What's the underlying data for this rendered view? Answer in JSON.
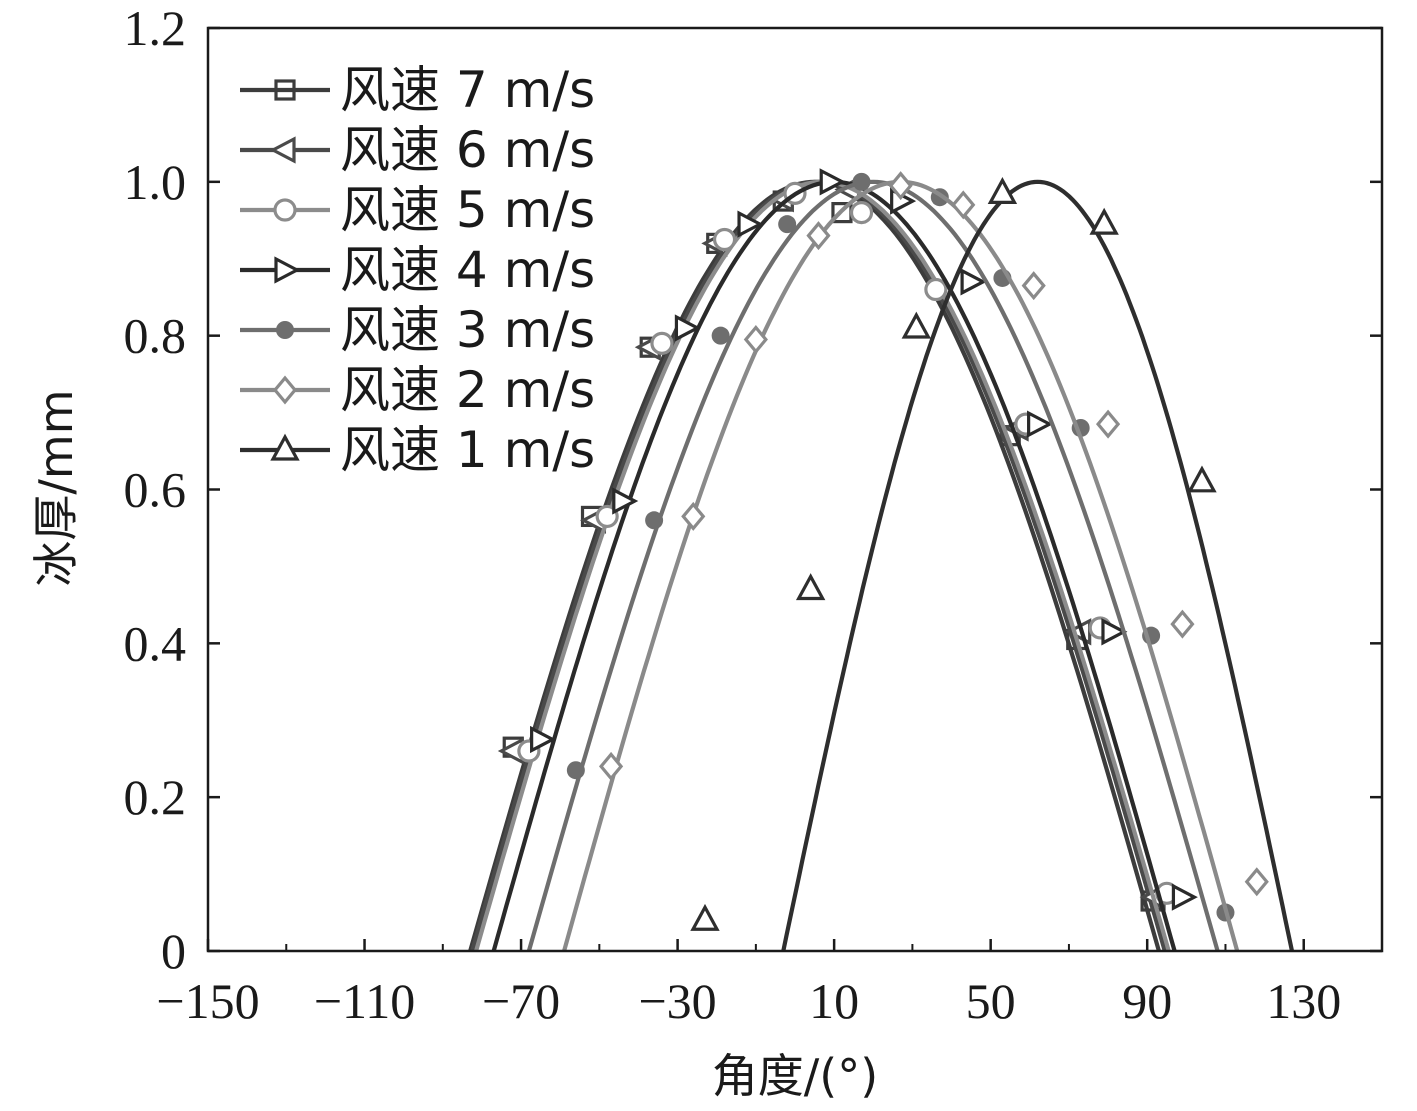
{
  "chart_data": {
    "type": "line",
    "xlabel": "角度/(°)",
    "ylabel": "冰厚/mm",
    "xlim": [
      -150,
      150
    ],
    "ylim": [
      0,
      1.2
    ],
    "xticks": [
      -150,
      -110,
      -70,
      -30,
      10,
      50,
      90,
      130
    ],
    "xtick_labels": [
      "−150",
      "−110",
      "−70",
      "−30",
      "10",
      "50",
      "90",
      "130"
    ],
    "yticks": [
      0,
      0.2,
      0.4,
      0.6,
      0.8,
      1.0,
      1.2
    ],
    "ytick_labels": [
      "0",
      "0.2",
      "0.4",
      "0.6",
      "0.8",
      "1.0",
      "1.2"
    ],
    "grid": false,
    "legend_position": "top-left",
    "series": [
      {
        "name": "风速 7 m/s",
        "marker": "square",
        "color": "#3c3c3c",
        "center": 5,
        "halfwidth": 88,
        "x": [
          -82,
          -72,
          -52,
          -37,
          -20,
          -3,
          12,
          55,
          72,
          91,
          93
        ],
        "y": [
          0,
          0.265,
          0.565,
          0.785,
          0.92,
          0.975,
          0.96,
          0.67,
          0.405,
          0.065,
          0
        ]
      },
      {
        "name": "风速 6 m/s",
        "marker": "triangle-left",
        "color": "#4a4a4a",
        "center": 6,
        "halfwidth": 88.5,
        "x": [
          -82.5,
          -72,
          -51,
          -37,
          -20,
          -3,
          14,
          57,
          73,
          92,
          94.5
        ],
        "y": [
          0,
          0.26,
          0.56,
          0.785,
          0.92,
          0.978,
          0.99,
          0.68,
          0.415,
          0.07,
          0
        ]
      },
      {
        "name": "风速 5 m/s",
        "marker": "circle",
        "color": "#8c8c8c",
        "center": 7,
        "halfwidth": 88.5,
        "x": [
          -81.5,
          -68,
          -48,
          -34,
          -18,
          0,
          17,
          36,
          59,
          78,
          95,
          95.5
        ],
        "y": [
          0,
          0.26,
          0.565,
          0.79,
          0.925,
          0.985,
          0.96,
          0.86,
          0.685,
          0.42,
          0.075,
          0
        ]
      },
      {
        "name": "风速 4 m/s",
        "marker": "triangle-right",
        "color": "#2a2a2a",
        "center": 10,
        "halfwidth": 87,
        "x": [
          -77,
          -65,
          -44,
          -28,
          -12,
          9,
          27,
          45,
          62,
          81,
          99,
          97
        ],
        "y": [
          0,
          0.275,
          0.585,
          0.81,
          0.945,
          1.0,
          0.975,
          0.87,
          0.685,
          0.415,
          0.07,
          0
        ]
      },
      {
        "name": "风速 3 m/s",
        "marker": "dot",
        "color": "#6e6e6e",
        "center": 20,
        "halfwidth": 88,
        "x": [
          -68,
          -56,
          -36,
          -19,
          -2,
          17,
          37,
          53,
          73,
          91,
          110,
          108
        ],
        "y": [
          0,
          0.235,
          0.56,
          0.8,
          0.945,
          1.0,
          0.98,
          0.875,
          0.68,
          0.41,
          0.05,
          0
        ]
      },
      {
        "name": "风速 2 m/s",
        "marker": "diamond",
        "color": "#8a8a8a",
        "center": 27,
        "halfwidth": 86,
        "x": [
          -59,
          -47,
          -26,
          -10,
          6,
          27,
          43,
          61,
          80,
          99,
          118,
          113
        ],
        "y": [
          0,
          0.24,
          0.565,
          0.795,
          0.93,
          0.995,
          0.97,
          0.865,
          0.685,
          0.425,
          0.09,
          0
        ]
      },
      {
        "name": "风速 1 m/s",
        "marker": "triangle-up",
        "color": "#2e2e2e",
        "center": 62,
        "halfwidth": 65,
        "x": [
          -23,
          4,
          31,
          53,
          79,
          104,
          127
        ],
        "y": [
          0.04,
          0.47,
          0.81,
          0.985,
          0.945,
          0.61,
          0
        ]
      }
    ]
  }
}
